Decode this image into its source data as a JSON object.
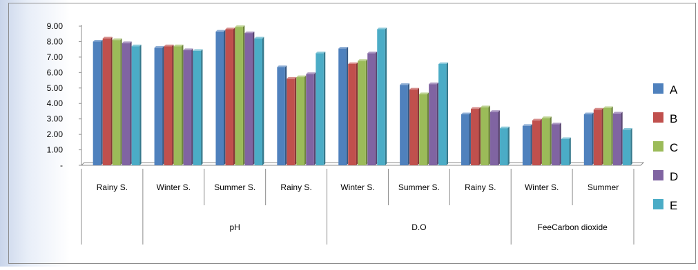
{
  "chart_data": {
    "type": "bar",
    "categories": [
      "Rainy S.",
      "Winter S.",
      "Summer S.",
      "Rainy S.",
      "Winter S.",
      "Summer S.",
      "Rainy S.",
      "Winter S.",
      "Summer"
    ],
    "groups": [
      {
        "label": "",
        "span": [
          0,
          0
        ]
      },
      {
        "label": "pH",
        "span": [
          1,
          3
        ]
      },
      {
        "label": "D.O",
        "span": [
          4,
          6
        ]
      },
      {
        "label": "FeeCarbon dioxide",
        "span": [
          7,
          8
        ]
      }
    ],
    "series": [
      {
        "name": "A",
        "color": "#4f81bd",
        "values": [
          8.0,
          7.6,
          8.65,
          6.35,
          7.55,
          5.2,
          3.3,
          2.55,
          3.3
        ]
      },
      {
        "name": "B",
        "color": "#c0504d",
        "values": [
          8.2,
          7.7,
          8.8,
          5.6,
          6.55,
          4.9,
          3.65,
          2.9,
          3.6
        ]
      },
      {
        "name": "C",
        "color": "#9bbb59",
        "values": [
          8.1,
          7.7,
          8.95,
          5.7,
          6.75,
          4.6,
          3.75,
          3.05,
          3.7
        ]
      },
      {
        "name": "D",
        "color": "#8064a2",
        "values": [
          7.9,
          7.45,
          8.55,
          5.9,
          7.25,
          5.25,
          3.45,
          2.65,
          3.35
        ]
      },
      {
        "name": "E",
        "color": "#4bacc6",
        "values": [
          7.7,
          7.4,
          8.2,
          7.25,
          8.8,
          6.55,
          2.4,
          1.7,
          2.3
        ]
      }
    ],
    "yticks": [
      "-",
      "1.00",
      "2.00",
      "3.00",
      "4.00",
      "5.00",
      "6.00",
      "7.00",
      "8.00",
      "9.00"
    ],
    "ylim": [
      0,
      9
    ],
    "grid": false,
    "legend": "right",
    "title": "",
    "xlabel": "",
    "ylabel": ""
  }
}
